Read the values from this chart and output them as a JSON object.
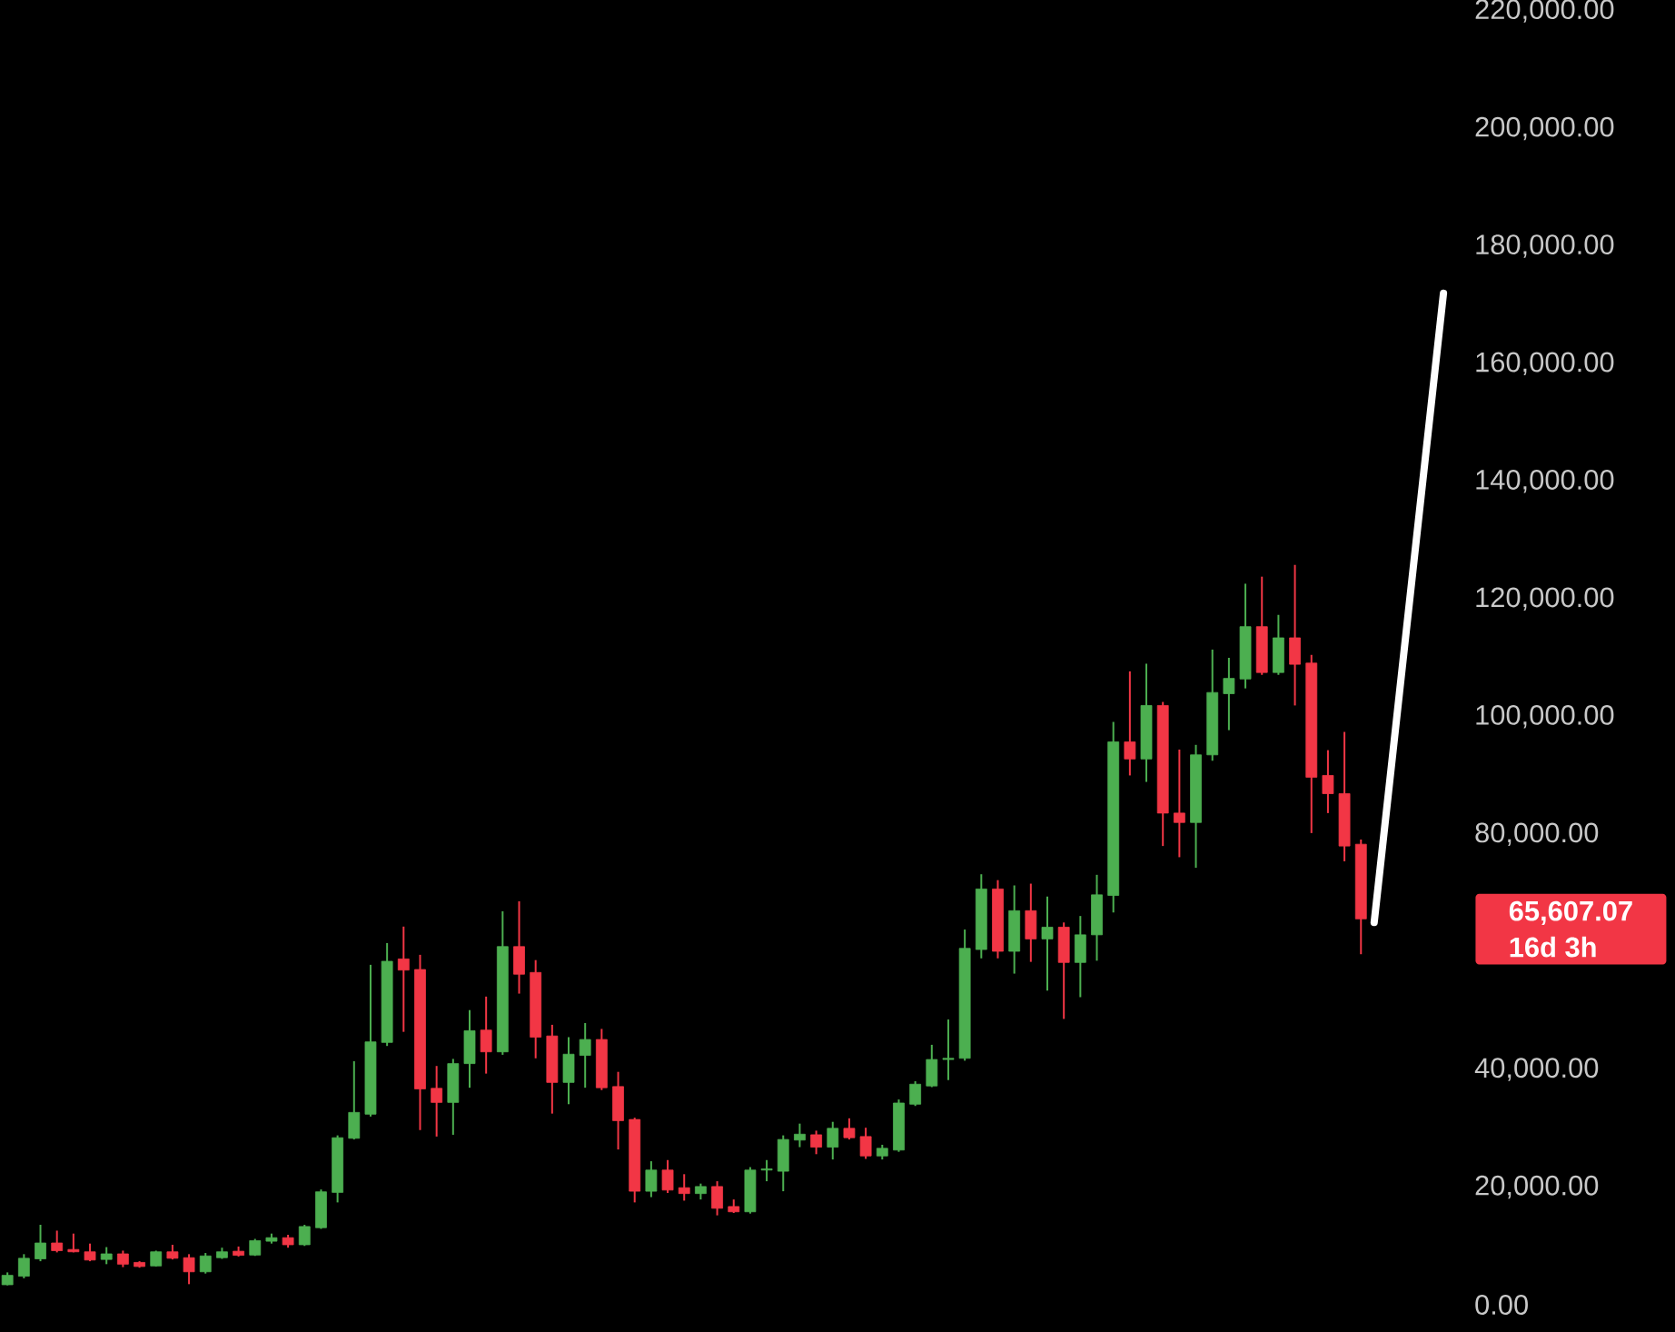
{
  "chart_data": {
    "type": "candlestick",
    "categories": [
      null,
      null,
      null,
      null,
      null,
      null,
      null,
      null,
      null,
      null,
      null,
      null,
      null,
      null,
      null,
      null,
      null,
      null,
      null,
      null,
      null,
      null,
      null,
      null,
      null,
      null,
      null,
      null,
      null,
      null,
      null,
      null,
      null,
      null,
      null,
      null,
      null,
      null,
      null,
      null,
      null,
      null,
      null,
      null,
      null,
      null,
      null,
      null,
      null,
      null,
      null,
      null,
      null,
      null,
      null,
      null,
      null,
      null,
      null,
      null,
      null,
      null,
      null,
      null,
      null,
      null,
      null,
      null,
      null,
      null,
      null,
      null,
      null,
      null,
      null,
      null,
      null,
      null,
      null,
      null,
      null,
      null,
      null
    ],
    "ohlc": [
      [
        3400,
        5500,
        3300,
        5000
      ],
      [
        4850,
        8600,
        4500,
        7900
      ],
      [
        7800,
        13600,
        7400,
        10500
      ],
      [
        10500,
        12600,
        8900,
        9200
      ],
      [
        9400,
        12100,
        8900,
        9000
      ],
      [
        9000,
        10400,
        7400,
        7600
      ],
      [
        7700,
        9800,
        6900,
        8650
      ],
      [
        8650,
        9200,
        6400,
        6900
      ],
      [
        7200,
        7400,
        6300,
        6500
      ],
      [
        6600,
        9200,
        6500,
        9000
      ],
      [
        9000,
        10200,
        7700,
        7900
      ],
      [
        8000,
        8600,
        3500,
        5600
      ],
      [
        5600,
        8800,
        5300,
        8300
      ],
      [
        8000,
        9700,
        7800,
        9000
      ],
      [
        9100,
        9900,
        8200,
        8400
      ],
      [
        8450,
        11200,
        8300,
        10900
      ],
      [
        10800,
        12100,
        10400,
        11400
      ],
      [
        11400,
        11900,
        9700,
        10200
      ],
      [
        10200,
        13600,
        10000,
        13300
      ],
      [
        13100,
        19600,
        12900,
        19200
      ],
      [
        19100,
        28800,
        17400,
        28400
      ],
      [
        28300,
        41400,
        28100,
        32700
      ],
      [
        32400,
        57800,
        32000,
        44700
      ],
      [
        44600,
        61500,
        44000,
        58400
      ],
      [
        58800,
        64300,
        46400,
        56900
      ],
      [
        57000,
        59500,
        29700,
        36700
      ],
      [
        36800,
        40600,
        28600,
        34400
      ],
      [
        34400,
        41800,
        28900,
        41000
      ],
      [
        41000,
        50100,
        36900,
        46600
      ],
      [
        46700,
        52400,
        39300,
        43000
      ],
      [
        43000,
        66900,
        42500,
        60900
      ],
      [
        60900,
        68600,
        52900,
        56200
      ],
      [
        56500,
        58600,
        41900,
        45500
      ],
      [
        45700,
        47600,
        32500,
        37800
      ],
      [
        37800,
        45500,
        34100,
        42600
      ],
      [
        42400,
        47900,
        36900,
        45100
      ],
      [
        45100,
        46900,
        36500,
        36900
      ],
      [
        37100,
        39600,
        26400,
        31300
      ],
      [
        31500,
        31800,
        17400,
        19300
      ],
      [
        19300,
        24400,
        18300,
        22900
      ],
      [
        22900,
        24600,
        19000,
        19500
      ],
      [
        19900,
        22200,
        17700,
        18900
      ],
      [
        18900,
        20600,
        17900,
        20100
      ],
      [
        20100,
        21000,
        15200,
        16400
      ],
      [
        16700,
        17900,
        15600,
        15800
      ],
      [
        15800,
        23400,
        15500,
        22900
      ],
      [
        22900,
        24600,
        21000,
        23100
      ],
      [
        22700,
        28800,
        19300,
        28100
      ],
      [
        28000,
        30800,
        26800,
        29000
      ],
      [
        28900,
        29600,
        25600,
        26800
      ],
      [
        26800,
        31100,
        24700,
        30000
      ],
      [
        30000,
        31700,
        28100,
        28400
      ],
      [
        28600,
        30100,
        24800,
        25300
      ],
      [
        25300,
        27200,
        24700,
        26600
      ],
      [
        26300,
        34900,
        26000,
        34300
      ],
      [
        34100,
        38000,
        33800,
        37500
      ],
      [
        37200,
        44200,
        37000,
        41700
      ],
      [
        41700,
        48500,
        38200,
        41900
      ],
      [
        41900,
        63800,
        41500,
        60600
      ],
      [
        60400,
        73200,
        58900,
        70700
      ],
      [
        70700,
        72200,
        58900,
        60100
      ],
      [
        60100,
        71300,
        56300,
        67000
      ],
      [
        67000,
        71600,
        58300,
        62200
      ],
      [
        62200,
        69400,
        53400,
        64200
      ],
      [
        64200,
        65000,
        48600,
        58200
      ],
      [
        58200,
        66100,
        52300,
        62900
      ],
      [
        62900,
        73100,
        58500,
        69700
      ],
      [
        69600,
        99100,
        66700,
        95700
      ],
      [
        95700,
        107700,
        90000,
        92800
      ],
      [
        92800,
        109000,
        88900,
        101900
      ],
      [
        101900,
        102500,
        78000,
        83600
      ],
      [
        83600,
        94400,
        76100,
        82000
      ],
      [
        82000,
        95200,
        74300,
        93500
      ],
      [
        93500,
        111400,
        92500,
        104100
      ],
      [
        103900,
        110000,
        97700,
        106500
      ],
      [
        106400,
        122600,
        104800,
        115300
      ],
      [
        115300,
        123800,
        107100,
        107500
      ],
      [
        107500,
        117300,
        107100,
        113400
      ],
      [
        113400,
        125800,
        101900,
        108900
      ],
      [
        109100,
        110500,
        80200,
        89700
      ],
      [
        90000,
        94300,
        83600,
        86900
      ],
      [
        86900,
        97400,
        75400,
        78000
      ],
      [
        78300,
        79100,
        59600,
        65607.07
      ]
    ],
    "colors": [
      "#4caf50",
      "#4caf50",
      "#4caf50",
      "#f23645",
      "#f23645",
      "#f23645",
      "#4caf50",
      "#f23645",
      "#f23645",
      "#4caf50",
      "#f23645",
      "#f23645",
      "#4caf50",
      "#4caf50",
      "#f23645",
      "#4caf50",
      "#4caf50",
      "#f23645",
      "#4caf50",
      "#4caf50",
      "#4caf50",
      "#4caf50",
      "#4caf50",
      "#4caf50",
      "#f23645",
      "#f23645",
      "#f23645",
      "#4caf50",
      "#4caf50",
      "#f23645",
      "#4caf50",
      "#f23645",
      "#f23645",
      "#f23645",
      "#4caf50",
      "#4caf50",
      "#f23645",
      "#f23645",
      "#f23645",
      "#4caf50",
      "#f23645",
      "#f23645",
      "#4caf50",
      "#f23645",
      "#f23645",
      "#4caf50",
      "#4caf50",
      "#4caf50",
      "#4caf50",
      "#f23645",
      "#4caf50",
      "#f23645",
      "#f23645",
      "#4caf50",
      "#4caf50",
      "#4caf50",
      "#4caf50",
      "#4caf50",
      "#4caf50",
      "#4caf50",
      "#f23645",
      "#4caf50",
      "#f23645",
      "#4caf50",
      "#f23645",
      "#4caf50",
      "#4caf50",
      "#4caf50",
      "#f23645",
      "#4caf50",
      "#f23645",
      "#f23645",
      "#4caf50",
      "#4caf50",
      "#4caf50",
      "#4caf50",
      "#f23645",
      "#4caf50",
      "#f23645",
      "#f23645",
      "#f23645",
      "#f23645",
      "#f23645"
    ],
    "ylim": [
      0,
      220000
    ],
    "yticks": [
      {
        "value": 0,
        "label": "0.00"
      },
      {
        "value": 20000,
        "label": "20,000.00"
      },
      {
        "value": 40000,
        "label": "40,000.00"
      },
      {
        "value": 80000,
        "label": "80,000.00"
      },
      {
        "value": 100000,
        "label": "100,000.00"
      },
      {
        "value": 120000,
        "label": "120,000.00"
      },
      {
        "value": 140000,
        "label": "140,000.00"
      },
      {
        "value": 160000,
        "label": "160,000.00"
      },
      {
        "value": 180000,
        "label": "180,000.00"
      },
      {
        "value": 200000,
        "label": "200,000.00"
      },
      {
        "value": 220000,
        "label": "220,000.00"
      }
    ],
    "tick_labels": "y",
    "annotations": [
      "65,607.07",
      "16d 3h"
    ]
  }
}
